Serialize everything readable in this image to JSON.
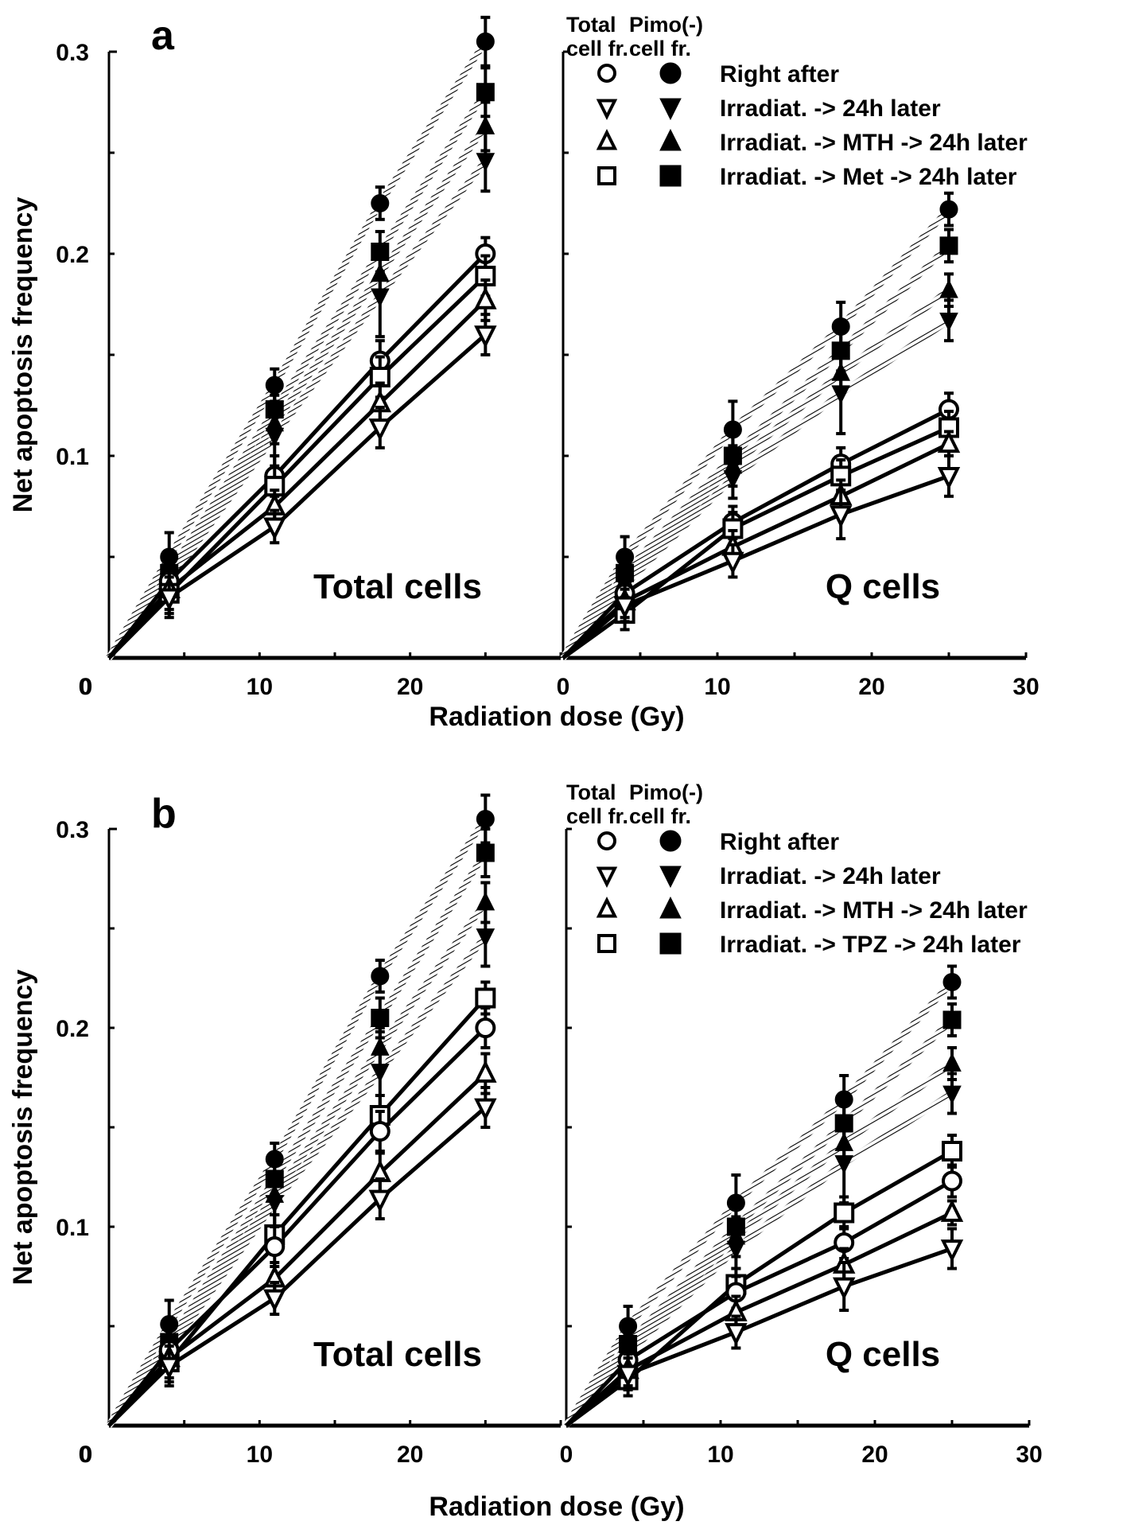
{
  "y_axis_label": "Net apoptosis frequency",
  "x_axis_label": "Radiation dose (Gy)",
  "legend_header": {
    "col1_line1": "Total",
    "col1_line2": "cell fr.",
    "col2_line1": "Pimo(-)",
    "col2_line2": "cell fr."
  },
  "colors": {
    "ink": "#000000",
    "background": "#ffffff"
  },
  "chart_data": [
    {
      "panel": "a",
      "type": "line",
      "legend": [
        {
          "label": "Right after",
          "marker": "circle"
        },
        {
          "label": "Irradiat. -> 24h later",
          "marker": "triangle-down"
        },
        {
          "label": "Irradiat. -> MTH -> 24h later",
          "marker": "triangle-up"
        },
        {
          "label": "Irradiat. -> Met -> 24h later",
          "marker": "square"
        }
      ],
      "legend_placement": "top-right",
      "ylim": [
        0,
        0.3
      ],
      "yticks": [
        0,
        0.1,
        0.2,
        0.3
      ],
      "ytick_labels": [
        "0",
        "0.1",
        "0.2",
        "0.3"
      ],
      "subplots": [
        {
          "title": "Total cells",
          "xlim": [
            0,
            30
          ],
          "xticks": [
            0,
            10,
            20
          ],
          "xtick_labels": [
            "0",
            "10",
            "20"
          ],
          "x": [
            4,
            11,
            18,
            25
          ],
          "series": [
            {
              "name": "Right after (Pimo(-) cell fr.)",
              "marker": "circle",
              "filled": true,
              "values": [
                0.05,
                0.135,
                0.225,
                0.305
              ],
              "err": [
                0.012,
                0.008,
                0.008,
                0.012
              ]
            },
            {
              "name": "Irradiat. -> Met -> 24h later (Pimo(-) cell fr.)",
              "marker": "square",
              "filled": true,
              "values": [
                0.042,
                0.123,
                0.201,
                0.28
              ],
              "err": [
                0.01,
                0.01,
                0.01,
                0.012
              ]
            },
            {
              "name": "Irradiat. -> MTH -> 24h later (Pimo(-) cell fr.)",
              "marker": "triangle-up",
              "filled": true,
              "values": [
                0.04,
                0.116,
                0.19,
                0.263
              ],
              "err": [
                0.01,
                0.01,
                0.01,
                0.012
              ]
            },
            {
              "name": "Irradiat. -> 24h later (Pimo(-) cell fr.)",
              "marker": "triangle-down",
              "filled": true,
              "values": [
                0.038,
                0.11,
                0.179,
                0.246
              ],
              "err": [
                0.01,
                0.02,
                0.02,
                0.015
              ]
            },
            {
              "name": "Right after (Total cell fr.)",
              "marker": "circle",
              "filled": false,
              "values": [
                0.038,
                0.09,
                0.147,
                0.2
              ],
              "err": [
                0.01,
                0.01,
                0.01,
                0.008
              ]
            },
            {
              "name": "Irradiat. -> Met -> 24h later (Total cell fr.)",
              "marker": "square",
              "filled": false,
              "values": [
                0.032,
                0.085,
                0.139,
                0.189
              ],
              "err": [
                0.01,
                0.01,
                0.01,
                0.01
              ]
            },
            {
              "name": "Irradiat. -> MTH -> 24h later (Total cell fr.)",
              "marker": "triangle-up",
              "filled": false,
              "values": [
                0.034,
                0.075,
                0.126,
                0.177
              ],
              "err": [
                0.01,
                0.008,
                0.01,
                0.01
              ]
            },
            {
              "name": "Irradiat. -> 24h later (Total cell fr.)",
              "marker": "triangle-down",
              "filled": false,
              "values": [
                0.03,
                0.065,
                0.114,
                0.16
              ],
              "err": [
                0.01,
                0.008,
                0.01,
                0.01
              ]
            }
          ]
        },
        {
          "title": "Q cells",
          "xlim": [
            0,
            30
          ],
          "xticks": [
            0,
            10,
            20,
            30
          ],
          "xtick_labels": [
            "0",
            "10",
            "20",
            "30"
          ],
          "x": [
            4,
            11,
            18,
            25
          ],
          "series": [
            {
              "name": "Right after (Pimo(-) cell fr.)",
              "marker": "circle",
              "filled": true,
              "values": [
                0.05,
                0.113,
                0.164,
                0.222
              ],
              "err": [
                0.01,
                0.014,
                0.012,
                0.008
              ]
            },
            {
              "name": "Irradiat. -> Met -> 24h later (Pimo(-) cell fr.)",
              "marker": "square",
              "filled": true,
              "values": [
                0.042,
                0.1,
                0.152,
                0.204
              ],
              "err": [
                0.008,
                0.01,
                0.01,
                0.008
              ]
            },
            {
              "name": "Irradiat. -> MTH -> 24h later (Pimo(-) cell fr.)",
              "marker": "triangle-up",
              "filled": true,
              "values": [
                0.038,
                0.095,
                0.141,
                0.182
              ],
              "err": [
                0.008,
                0.01,
                0.01,
                0.008
              ]
            },
            {
              "name": "Irradiat. -> 24h later (Pimo(-) cell fr.)",
              "marker": "triangle-down",
              "filled": true,
              "values": [
                0.036,
                0.089,
                0.131,
                0.167
              ],
              "err": [
                0.008,
                0.01,
                0.02,
                0.01
              ]
            },
            {
              "name": "Right after (Total cell fr.)",
              "marker": "circle",
              "filled": false,
              "values": [
                0.032,
                0.067,
                0.096,
                0.123
              ],
              "err": [
                0.008,
                0.008,
                0.008,
                0.008
              ]
            },
            {
              "name": "Irradiat. -> Met -> 24h later (Total cell fr.)",
              "marker": "square",
              "filled": false,
              "values": [
                0.022,
                0.064,
                0.09,
                0.114
              ],
              "err": [
                0.008,
                0.008,
                0.008,
                0.008
              ]
            },
            {
              "name": "Irradiat. -> MTH -> 24h later (Total cell fr.)",
              "marker": "triangle-up",
              "filled": false,
              "values": [
                0.028,
                0.055,
                0.08,
                0.106
              ],
              "err": [
                0.008,
                0.008,
                0.008,
                0.006
              ]
            },
            {
              "name": "Irradiat. -> 24h later (Total cell fr.)",
              "marker": "triangle-down",
              "filled": false,
              "values": [
                0.026,
                0.048,
                0.071,
                0.09
              ],
              "err": [
                0.008,
                0.008,
                0.012,
                0.01
              ]
            }
          ]
        }
      ]
    },
    {
      "panel": "b",
      "type": "line",
      "legend": [
        {
          "label": "Right after",
          "marker": "circle"
        },
        {
          "label": "Irradiat. -> 24h later",
          "marker": "triangle-down"
        },
        {
          "label": "Irradiat. -> MTH -> 24h later",
          "marker": "triangle-up"
        },
        {
          "label": "Irradiat. -> TPZ -> 24h later",
          "marker": "square"
        }
      ],
      "legend_placement": "top-right",
      "ylim": [
        0,
        0.3
      ],
      "yticks": [
        0,
        0.1,
        0.2,
        0.3
      ],
      "ytick_labels": [
        "0",
        "0.1",
        "0.2",
        "0.3"
      ],
      "subplots": [
        {
          "title": "Total cells",
          "xlim": [
            0,
            30
          ],
          "xticks": [
            0,
            10,
            20
          ],
          "xtick_labels": [
            "0",
            "10",
            "20"
          ],
          "x": [
            4,
            11,
            18,
            25
          ],
          "series": [
            {
              "name": "Right after (Pimo(-) cell fr.)",
              "marker": "circle",
              "filled": true,
              "values": [
                0.051,
                0.134,
                0.226,
                0.305
              ],
              "err": [
                0.012,
                0.008,
                0.008,
                0.012
              ]
            },
            {
              "name": "Irradiat. -> TPZ -> 24h later (Pimo(-) cell fr.)",
              "marker": "square",
              "filled": true,
              "values": [
                0.042,
                0.124,
                0.205,
                0.288
              ],
              "err": [
                0.01,
                0.01,
                0.01,
                0.012
              ]
            },
            {
              "name": "Irradiat. -> MTH -> 24h later (Pimo(-) cell fr.)",
              "marker": "triangle-up",
              "filled": true,
              "values": [
                0.04,
                0.116,
                0.19,
                0.263
              ],
              "err": [
                0.01,
                0.01,
                0.01,
                0.01
              ]
            },
            {
              "name": "Irradiat. -> 24h later (Pimo(-) cell fr.)",
              "marker": "triangle-down",
              "filled": true,
              "values": [
                0.038,
                0.112,
                0.178,
                0.246
              ],
              "err": [
                0.01,
                0.015,
                0.02,
                0.015
              ]
            },
            {
              "name": "Irradiat. -> TPZ -> 24h later (Total cell fr.)",
              "marker": "square",
              "filled": false,
              "values": [
                0.032,
                0.096,
                0.156,
                0.215
              ],
              "err": [
                0.01,
                0.01,
                0.01,
                0.008
              ]
            },
            {
              "name": "Right after (Total cell fr.)",
              "marker": "circle",
              "filled": false,
              "values": [
                0.038,
                0.09,
                0.148,
                0.2
              ],
              "err": [
                0.01,
                0.01,
                0.01,
                0.01
              ]
            },
            {
              "name": "Irradiat. -> MTH -> 24h later (Total cell fr.)",
              "marker": "triangle-up",
              "filled": false,
              "values": [
                0.034,
                0.074,
                0.127,
                0.177
              ],
              "err": [
                0.01,
                0.008,
                0.01,
                0.01
              ]
            },
            {
              "name": "Irradiat. -> 24h later (Total cell fr.)",
              "marker": "triangle-down",
              "filled": false,
              "values": [
                0.03,
                0.064,
                0.114,
                0.16
              ],
              "err": [
                0.01,
                0.008,
                0.01,
                0.01
              ]
            }
          ]
        },
        {
          "title": "Q cells",
          "xlim": [
            0,
            30
          ],
          "xticks": [
            0,
            10,
            20,
            30
          ],
          "xtick_labels": [
            "0",
            "10",
            "20",
            "30"
          ],
          "x": [
            4,
            11,
            18,
            25
          ],
          "series": [
            {
              "name": "Right after (Pimo(-) cell fr.)",
              "marker": "circle",
              "filled": true,
              "values": [
                0.05,
                0.112,
                0.164,
                0.223
              ],
              "err": [
                0.01,
                0.014,
                0.012,
                0.008
              ]
            },
            {
              "name": "Irradiat. -> TPZ -> 24h later (Pimo(-) cell fr.)",
              "marker": "square",
              "filled": true,
              "values": [
                0.041,
                0.1,
                0.152,
                0.204
              ],
              "err": [
                0.008,
                0.01,
                0.01,
                0.008
              ]
            },
            {
              "name": "Irradiat. -> MTH -> 24h later (Pimo(-) cell fr.)",
              "marker": "triangle-up",
              "filled": true,
              "values": [
                0.038,
                0.095,
                0.142,
                0.182
              ],
              "err": [
                0.008,
                0.01,
                0.01,
                0.008
              ]
            },
            {
              "name": "Irradiat. -> 24h later (Pimo(-) cell fr.)",
              "marker": "triangle-down",
              "filled": true,
              "values": [
                0.036,
                0.089,
                0.132,
                0.167
              ],
              "err": [
                0.008,
                0.01,
                0.02,
                0.01
              ]
            },
            {
              "name": "Irradiat. -> TPZ -> 24h later (Total cell fr.)",
              "marker": "square",
              "filled": false,
              "values": [
                0.023,
                0.071,
                0.107,
                0.138
              ],
              "err": [
                0.008,
                0.008,
                0.008,
                0.008
              ]
            },
            {
              "name": "Right after (Total cell fr.)",
              "marker": "circle",
              "filled": false,
              "values": [
                0.033,
                0.067,
                0.092,
                0.123
              ],
              "err": [
                0.008,
                0.008,
                0.008,
                0.008
              ]
            },
            {
              "name": "Irradiat. -> MTH -> 24h later (Total cell fr.)",
              "marker": "triangle-up",
              "filled": false,
              "values": [
                0.028,
                0.057,
                0.081,
                0.107
              ],
              "err": [
                0.008,
                0.008,
                0.008,
                0.006
              ]
            },
            {
              "name": "Irradiat. -> 24h later (Total cell fr.)",
              "marker": "triangle-down",
              "filled": false,
              "values": [
                0.026,
                0.047,
                0.07,
                0.089
              ],
              "err": [
                0.008,
                0.008,
                0.012,
                0.01
              ]
            }
          ]
        }
      ]
    }
  ]
}
